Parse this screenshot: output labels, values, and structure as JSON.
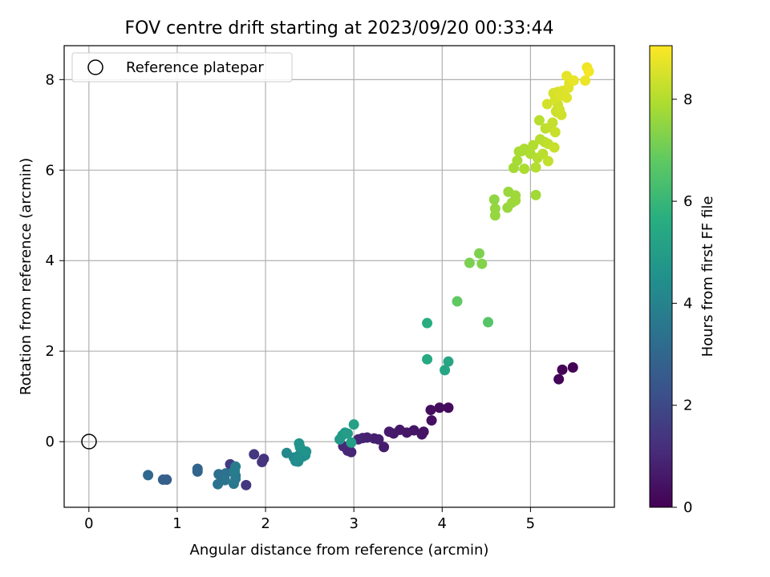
{
  "chart_data": {
    "type": "scatter",
    "title": "FOV centre drift starting at 2023/09/20 00:33:44",
    "xlabel": "Angular distance from reference (arcmin)",
    "ylabel": "Rotation from reference (arcmin)",
    "xlim": [
      -0.28,
      5.95
    ],
    "ylim": [
      -1.45,
      8.75
    ],
    "xticks": [
      "0",
      "1",
      "2",
      "3",
      "4",
      "5"
    ],
    "yticks": [
      "0",
      "2",
      "4",
      "6",
      "8"
    ],
    "grid": true,
    "legend": {
      "placement": "top-left",
      "entries": [
        {
          "label": "Reference platepar",
          "marker": "open-circle"
        }
      ]
    },
    "reference_point": {
      "x": 0,
      "y": 0
    },
    "colorbar": {
      "label": "Hours from first FF file",
      "range": [
        0,
        9.05
      ],
      "ticks": [
        "0",
        "2",
        "4",
        "6",
        "8"
      ],
      "colormap": "viridis"
    },
    "points": [
      [
        5.48,
        1.64,
        0.02
      ],
      [
        5.36,
        1.59,
        0.05
      ],
      [
        5.32,
        1.38,
        0.08
      ],
      [
        4.07,
        0.75,
        0.25
      ],
      [
        3.97,
        0.75,
        0.3
      ],
      [
        3.87,
        0.7,
        0.35
      ],
      [
        3.88,
        0.47,
        0.38
      ],
      [
        3.79,
        0.22,
        0.45
      ],
      [
        3.77,
        0.16,
        0.48
      ],
      [
        3.68,
        0.25,
        0.52
      ],
      [
        3.6,
        0.2,
        0.56
      ],
      [
        3.52,
        0.26,
        0.6
      ],
      [
        3.45,
        0.18,
        0.64
      ],
      [
        3.4,
        0.22,
        0.68
      ],
      [
        3.34,
        -0.12,
        0.72
      ],
      [
        3.28,
        0.05,
        0.76
      ],
      [
        3.23,
        0.07,
        0.8
      ],
      [
        3.15,
        0.09,
        0.84
      ],
      [
        3.1,
        0.08,
        0.88
      ],
      [
        3.05,
        0.05,
        0.92
      ],
      [
        2.97,
        -0.23,
        0.96
      ],
      [
        2.93,
        -0.2,
        1.0
      ],
      [
        2.88,
        -0.1,
        1.04
      ],
      [
        1.98,
        -0.38,
        1.3
      ],
      [
        1.96,
        -0.45,
        1.35
      ],
      [
        1.87,
        -0.28,
        1.4
      ],
      [
        1.78,
        -0.96,
        1.45
      ],
      [
        1.6,
        -0.5,
        1.55
      ],
      [
        0.88,
        -0.84,
        2.7
      ],
      [
        0.84,
        -0.84,
        2.75
      ],
      [
        1.23,
        -0.6,
        2.9
      ],
      [
        1.23,
        -0.66,
        2.95
      ],
      [
        0.67,
        -0.74,
        3.05
      ],
      [
        1.47,
        -0.72,
        3.25
      ],
      [
        1.5,
        -0.78,
        3.3
      ],
      [
        1.55,
        -0.7,
        3.35
      ],
      [
        1.46,
        -0.94,
        3.4
      ],
      [
        1.54,
        -0.85,
        3.45
      ],
      [
        1.66,
        -0.75,
        3.55
      ],
      [
        1.64,
        -0.93,
        3.6
      ],
      [
        1.66,
        -0.82,
        3.65
      ],
      [
        1.65,
        -0.66,
        3.7
      ],
      [
        1.66,
        -0.55,
        3.75
      ],
      [
        1.65,
        -0.63,
        3.8
      ],
      [
        2.24,
        -0.25,
        4.2
      ],
      [
        2.32,
        -0.35,
        4.25
      ],
      [
        2.34,
        -0.43,
        4.3
      ],
      [
        2.37,
        -0.44,
        4.35
      ],
      [
        2.38,
        -0.3,
        4.4
      ],
      [
        2.42,
        -0.33,
        4.45
      ],
      [
        2.45,
        -0.3,
        4.5
      ],
      [
        2.46,
        -0.22,
        4.55
      ],
      [
        2.39,
        -0.12,
        4.6
      ],
      [
        2.38,
        -0.04,
        4.65
      ],
      [
        2.84,
        0.05,
        4.8
      ],
      [
        2.87,
        0.14,
        4.85
      ],
      [
        2.9,
        0.2,
        4.9
      ],
      [
        2.93,
        0.18,
        4.95
      ],
      [
        2.97,
        -0.02,
        5.05
      ],
      [
        3.0,
        0.38,
        5.1
      ],
      [
        4.03,
        1.58,
        5.3
      ],
      [
        4.07,
        1.77,
        5.35
      ],
      [
        3.83,
        1.82,
        5.45
      ],
      [
        3.83,
        2.62,
        5.6
      ],
      [
        4.52,
        2.64,
        6.6
      ],
      [
        4.17,
        3.1,
        6.8
      ],
      [
        4.31,
        3.95,
        7.2
      ],
      [
        4.42,
        4.16,
        7.25
      ],
      [
        4.45,
        3.93,
        7.3
      ],
      [
        4.59,
        5.35,
        7.5
      ],
      [
        4.6,
        5.15,
        7.55
      ],
      [
        4.6,
        5.0,
        7.6
      ],
      [
        4.74,
        5.17,
        7.62
      ],
      [
        4.75,
        5.52,
        7.65
      ],
      [
        4.79,
        5.28,
        7.68
      ],
      [
        4.83,
        5.44,
        7.7
      ],
      [
        4.83,
        5.33,
        7.72
      ],
      [
        5.06,
        5.45,
        7.75
      ],
      [
        4.81,
        6.05,
        7.8
      ],
      [
        4.85,
        6.21,
        7.82
      ],
      [
        4.87,
        6.41,
        7.85
      ],
      [
        4.9,
        6.42,
        7.88
      ],
      [
        4.93,
        6.47,
        7.9
      ],
      [
        4.93,
        6.03,
        7.92
      ],
      [
        5.0,
        6.36,
        7.95
      ],
      [
        5.03,
        6.55,
        7.98
      ],
      [
        5.06,
        6.06,
        8.0
      ],
      [
        5.08,
        6.27,
        8.02
      ],
      [
        5.11,
        6.68,
        8.05
      ],
      [
        5.1,
        7.1,
        8.08
      ],
      [
        5.14,
        6.36,
        8.1
      ],
      [
        5.16,
        6.62,
        8.12
      ],
      [
        5.17,
        6.92,
        8.15
      ],
      [
        5.2,
        6.58,
        8.18
      ],
      [
        5.2,
        6.2,
        8.2
      ],
      [
        5.22,
        6.95,
        8.22
      ],
      [
        5.25,
        7.05,
        8.25
      ],
      [
        5.27,
        6.5,
        8.28
      ],
      [
        5.28,
        6.84,
        8.3
      ],
      [
        5.29,
        7.3,
        8.32
      ],
      [
        5.3,
        7.28,
        8.35
      ],
      [
        5.31,
        7.45,
        8.38
      ],
      [
        5.33,
        7.33,
        8.4
      ],
      [
        5.35,
        7.22,
        8.42
      ],
      [
        5.19,
        7.46,
        8.45
      ],
      [
        5.26,
        7.7,
        8.48
      ],
      [
        5.28,
        7.58,
        8.5
      ],
      [
        5.31,
        7.73,
        8.52
      ],
      [
        5.34,
        7.65,
        8.55
      ],
      [
        5.36,
        7.75,
        8.58
      ],
      [
        5.41,
        7.6,
        8.6
      ],
      [
        5.43,
        7.82,
        8.62
      ],
      [
        5.44,
        7.92,
        8.65
      ],
      [
        5.41,
        8.08,
        8.7
      ],
      [
        5.49,
        7.98,
        8.75
      ],
      [
        5.62,
        7.98,
        8.8
      ],
      [
        5.64,
        8.27,
        8.85
      ],
      [
        5.66,
        8.18,
        8.9
      ]
    ]
  }
}
